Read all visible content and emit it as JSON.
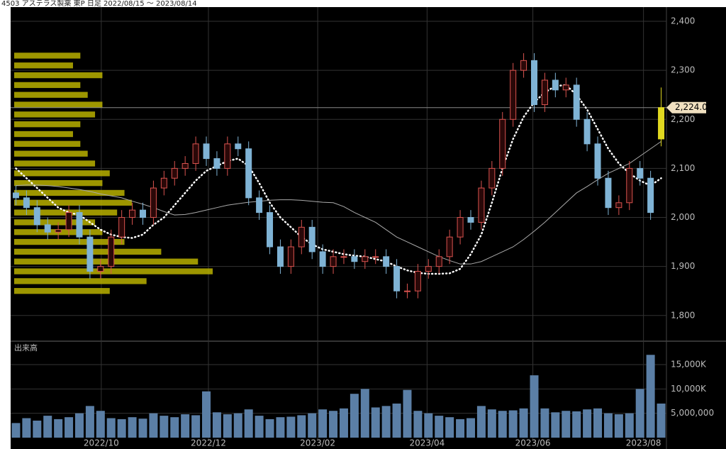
{
  "chart_data": {
    "type": "candlestick",
    "title": "4503 アステラス製薬 東P 日足 2022/08/15 ～ 2023/08/14",
    "volume_label": "出来高",
    "xlim": [
      -0.5,
      61.5
    ],
    "xticks": [
      {
        "value": 8.07,
        "label": "2022/10"
      },
      {
        "value": 18.2,
        "label": "2022/12"
      },
      {
        "value": 28.53,
        "label": "2023/02"
      },
      {
        "value": 38.87,
        "label": "2023/04"
      },
      {
        "value": 48.87,
        "label": "2023/06"
      },
      {
        "value": 59.33,
        "label": "2023/08"
      }
    ],
    "ylim": [
      1749,
      2429
    ],
    "yticks": [
      {
        "value": 1800,
        "label": "1,800"
      },
      {
        "value": 1900,
        "label": "1,900"
      },
      {
        "value": 2000,
        "label": "2,000"
      },
      {
        "value": 2100,
        "label": "2,100"
      },
      {
        "value": 2200,
        "label": "2,200"
      },
      {
        "value": 2300,
        "label": "2,300"
      },
      {
        "value": 2400,
        "label": "2,400"
      }
    ],
    "grid": true,
    "up_color": "#d9534f",
    "down_color": "#7fb3d5",
    "last_color": "#e0d820",
    "last_price": {
      "value": 2224,
      "label": "2,224.0"
    },
    "open": [
      2050,
      2040,
      2020,
      1985,
      1970,
      1975,
      2010,
      1960,
      1890,
      1900,
      1960,
      2000,
      2015,
      2000,
      2060,
      2080,
      2100,
      2110,
      2150,
      2120,
      2100,
      2150,
      2140,
      2040,
      2010,
      1940,
      1900,
      1940,
      1980,
      1930,
      1900,
      1920,
      1920,
      1910,
      1920,
      1920,
      1900,
      1850,
      1850,
      1890,
      1900,
      1920,
      1960,
      2000,
      1990,
      2060,
      2100,
      2200,
      2300,
      2320,
      2230,
      2280,
      2260,
      2270,
      2200,
      2150,
      2080,
      2020,
      2030,
      2100,
      2080,
      2160
    ],
    "high": [
      2065,
      2055,
      2035,
      2000,
      1990,
      2025,
      2025,
      1975,
      1915,
      1975,
      2015,
      2030,
      2030,
      2075,
      2095,
      2115,
      2125,
      2165,
      2165,
      2135,
      2165,
      2165,
      2155,
      2055,
      2025,
      1955,
      1955,
      1995,
      1995,
      1945,
      1935,
      1935,
      1935,
      1935,
      1935,
      1935,
      1915,
      1865,
      1905,
      1915,
      1935,
      1975,
      2015,
      2015,
      2075,
      2115,
      2215,
      2315,
      2335,
      2335,
      2295,
      2295,
      2285,
      2285,
      2215,
      2165,
      2095,
      2045,
      2115,
      2115,
      2095,
      2265
    ],
    "low": [
      2025,
      2005,
      1970,
      1955,
      1955,
      1960,
      1945,
      1875,
      1875,
      1885,
      1945,
      1985,
      1985,
      1985,
      2045,
      2065,
      2085,
      2095,
      2105,
      2085,
      2085,
      2125,
      2025,
      1995,
      1925,
      1885,
      1885,
      1925,
      1915,
      1885,
      1885,
      1905,
      1895,
      1895,
      1905,
      1885,
      1835,
      1835,
      1835,
      1875,
      1885,
      1905,
      1945,
      1975,
      1975,
      2045,
      2085,
      2185,
      2285,
      2215,
      2215,
      2245,
      2245,
      2185,
      2135,
      2065,
      2005,
      2005,
      2015,
      2065,
      1995,
      2145
    ],
    "close": [
      2040,
      2020,
      1985,
      1970,
      1975,
      2010,
      1960,
      1890,
      1900,
      1960,
      2000,
      2015,
      2000,
      2060,
      2080,
      2100,
      2110,
      2150,
      2120,
      2100,
      2150,
      2140,
      2040,
      2010,
      1940,
      1900,
      1940,
      1980,
      1930,
      1900,
      1920,
      1920,
      1910,
      1920,
      1920,
      1900,
      1850,
      1850,
      1890,
      1900,
      1920,
      1960,
      2000,
      1990,
      2060,
      2100,
      2200,
      2300,
      2320,
      2230,
      2280,
      2260,
      2270,
      2200,
      2150,
      2080,
      2020,
      2030,
      2100,
      2080,
      2010,
      2224
    ],
    "moving_averages": [
      {
        "color": "#ffffff",
        "dotted": true,
        "values": [
          2100,
          2080,
          2060,
          2040,
          2020,
          2010,
          2005,
          1990,
          1975,
          1965,
          1960,
          1958,
          1965,
          1985,
          2000,
          2025,
          2050,
          2075,
          2095,
          2105,
          2115,
          2120,
          2105,
          2070,
          2030,
          2000,
          1980,
          1960,
          1945,
          1935,
          1930,
          1925,
          1922,
          1920,
          1915,
          1910,
          1900,
          1892,
          1887,
          1885,
          1885,
          1886,
          1895,
          1925,
          1965,
          2030,
          2100,
          2160,
          2205,
          2235,
          2255,
          2268,
          2270,
          2250,
          2220,
          2180,
          2140,
          2110,
          2090,
          2075,
          2065,
          2080
        ]
      },
      {
        "color": "#aaaaaa",
        "dotted": false,
        "values": [
          2065,
          2066,
          2066,
          2065,
          2063,
          2060,
          2057,
          2053,
          2048,
          2044,
          2040,
          2033,
          2027,
          2020,
          2012,
          2005,
          2006,
          2010,
          2015,
          2020,
          2025,
          2028,
          2031,
          2033,
          2035,
          2036,
          2036,
          2035,
          2033,
          2031,
          2030,
          2022,
          2010,
          2000,
          1990,
          1975,
          1960,
          1950,
          1940,
          1930,
          1920,
          1912,
          1905,
          1905,
          1910,
          1920,
          1930,
          1940,
          1955,
          1972,
          1990,
          2010,
          2030,
          2050,
          2063,
          2077,
          2090,
          2100,
          2110,
          2125,
          2140,
          2155
        ]
      }
    ],
    "volume_profile": {
      "color": "#b8b000",
      "levels": [
        1850,
        1870,
        1890,
        1910,
        1930,
        1950,
        1970,
        1990,
        2010,
        2030,
        2050,
        2070,
        2090,
        2110,
        2130,
        2150,
        2170,
        2190,
        2210,
        2230,
        2250,
        2270,
        2290,
        2310,
        2330
      ],
      "values": [
        130,
        180,
        270,
        250,
        200,
        150,
        120,
        110,
        140,
        160,
        150,
        120,
        130,
        110,
        100,
        90,
        80,
        90,
        110,
        120,
        100,
        90,
        120,
        80,
        90
      ]
    },
    "volume": {
      "color": "#5b7fa6",
      "ylim": [
        0,
        19660000
      ],
      "yticks": [
        {
          "value": 5000000,
          "label": "5,000,000"
        },
        {
          "value": 10000000,
          "label": "10,000K"
        },
        {
          "value": 15000000,
          "label": "15,000K"
        }
      ],
      "values": [
        3000000,
        4000000,
        3500000,
        4500000,
        3800000,
        4200000,
        5000000,
        6500000,
        5500000,
        4000000,
        3800000,
        4200000,
        3900000,
        5000000,
        4500000,
        4200000,
        4800000,
        4600000,
        9500000,
        5200000,
        4800000,
        5000000,
        5800000,
        4500000,
        3800000,
        4200000,
        4300000,
        4600000,
        5000000,
        5800000,
        5500000,
        6000000,
        9000000,
        10000000,
        6200000,
        6500000,
        7000000,
        9800000,
        5500000,
        5000000,
        4500000,
        4200000,
        3800000,
        4000000,
        6500000,
        5800000,
        5500000,
        5600000,
        6000000,
        12800000,
        6000000,
        5200000,
        5500000,
        5400000,
        5800000,
        6000000,
        5000000,
        4800000,
        5000000,
        10000000,
        17000000,
        7000000
      ]
    }
  }
}
